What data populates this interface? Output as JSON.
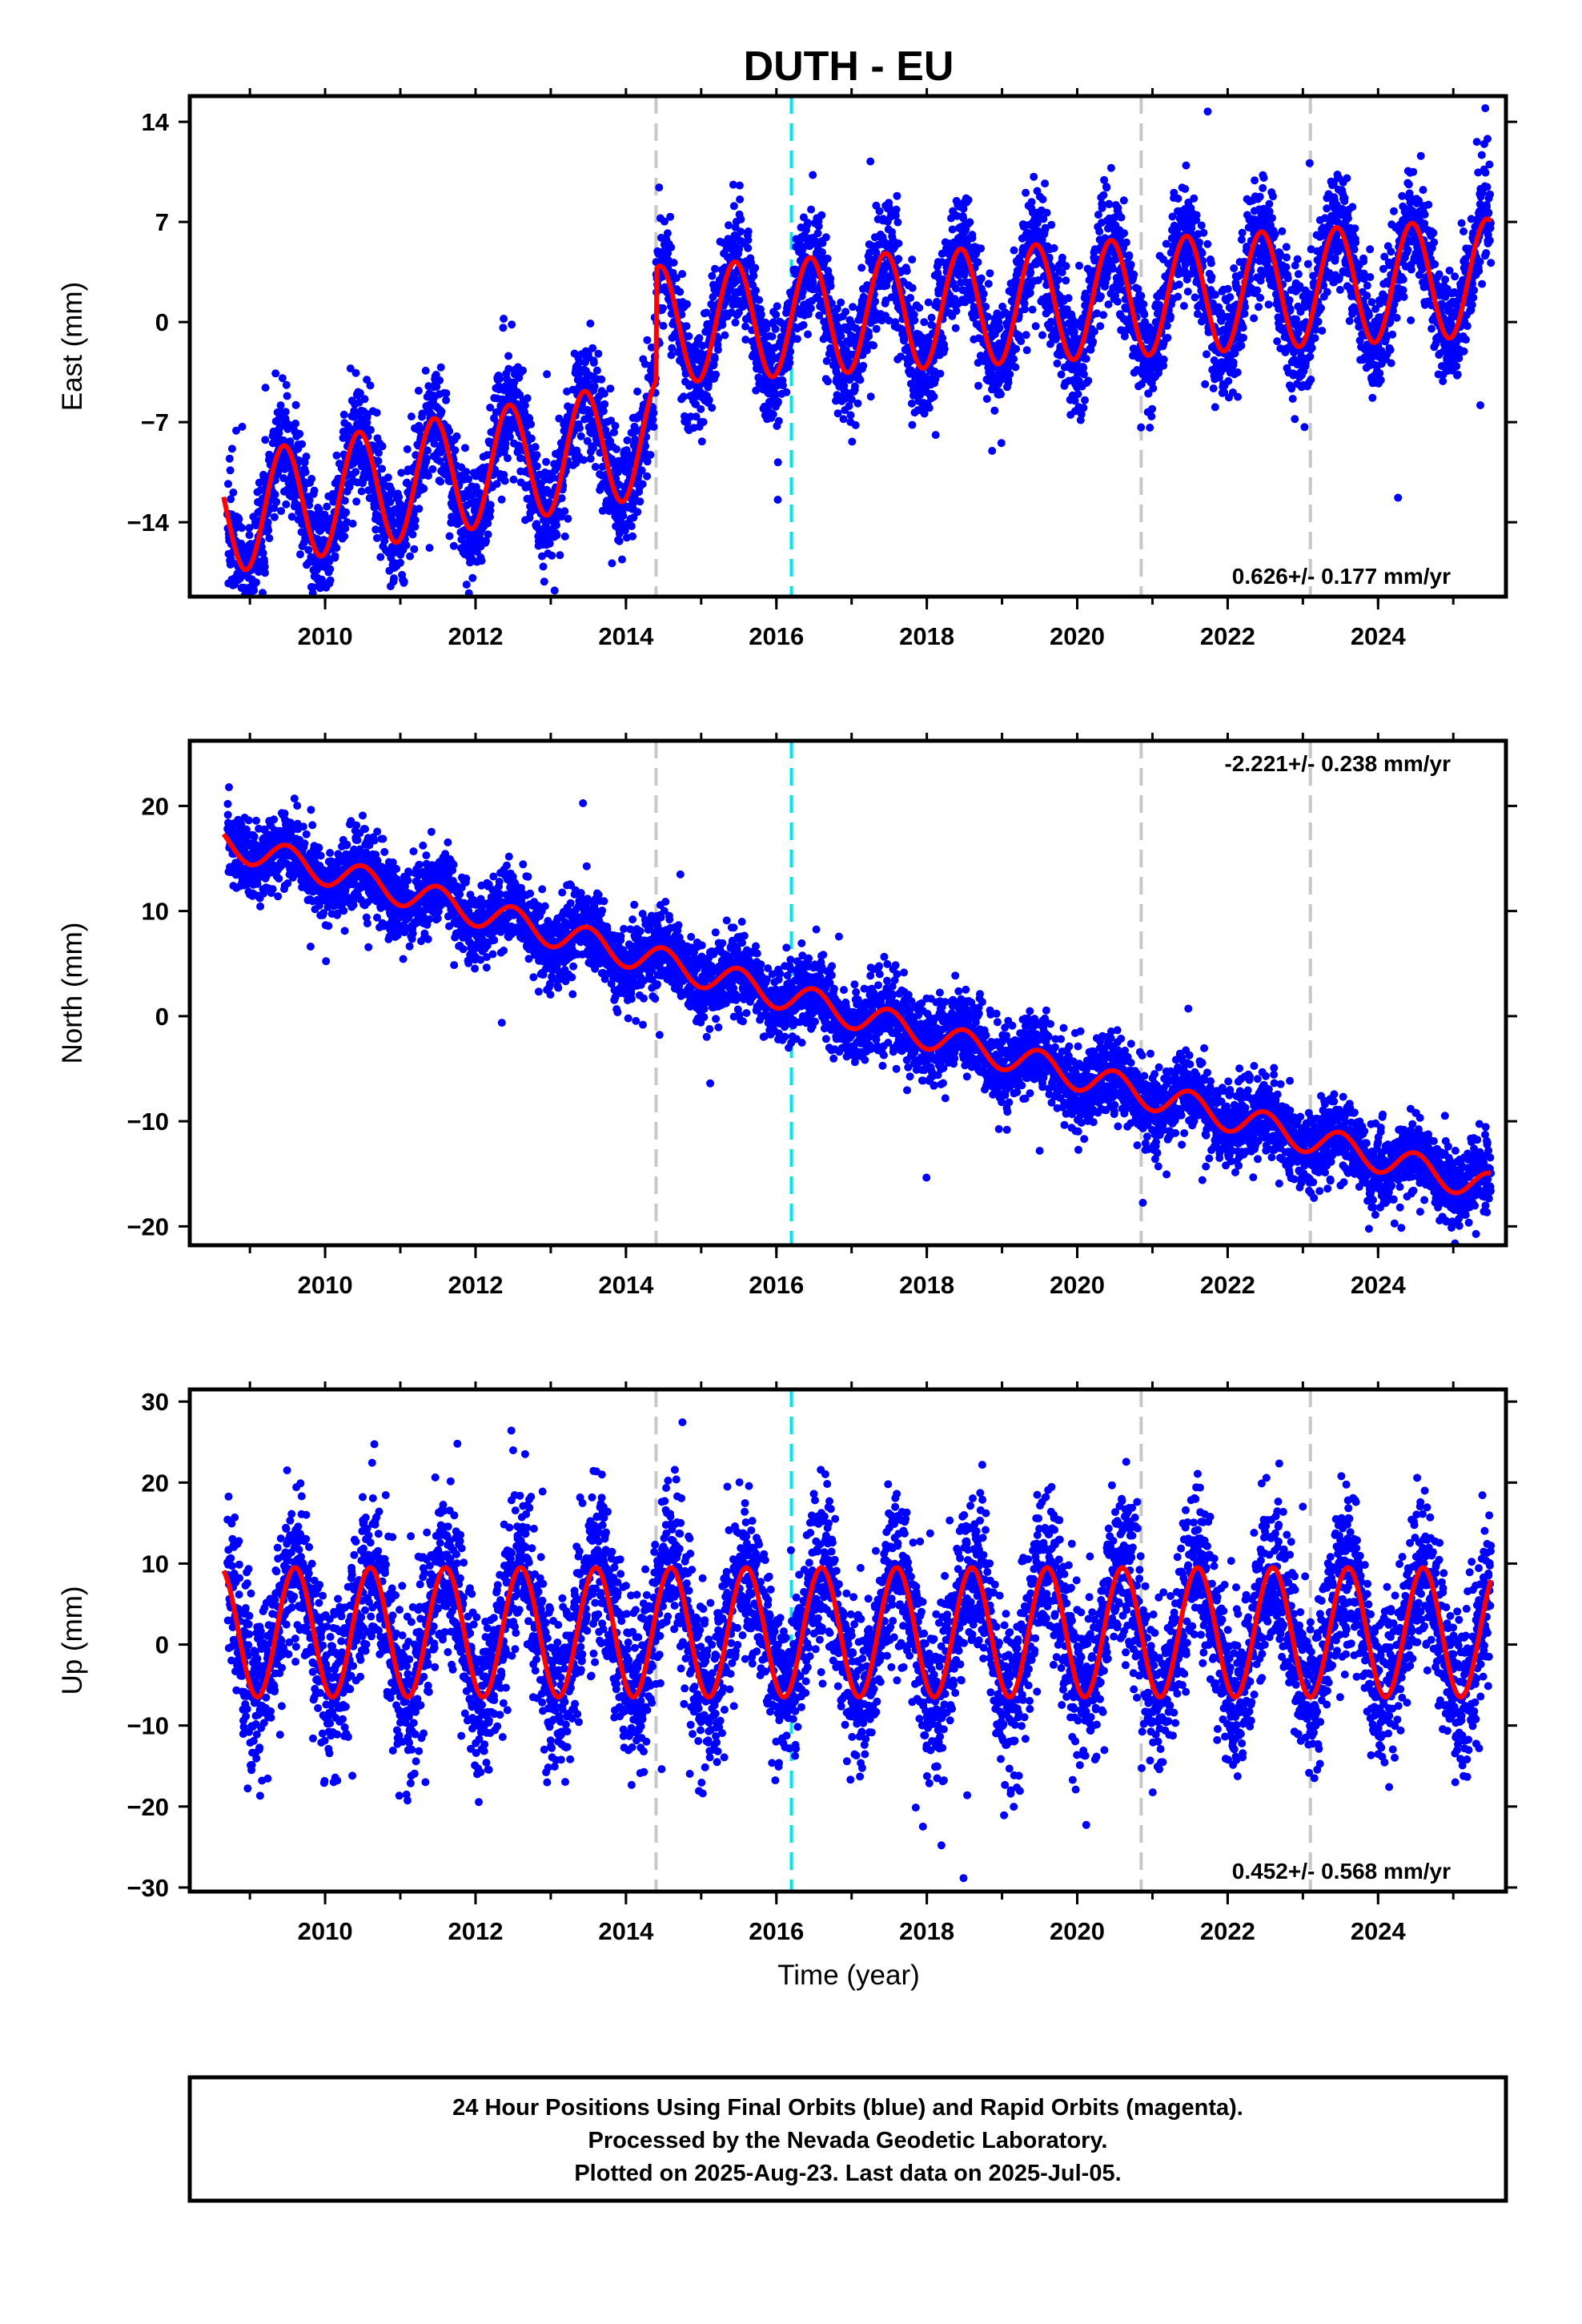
{
  "title": "DUTH - EU",
  "x_title": "Time (year)",
  "colors": {
    "points": "#0000ff",
    "fit": "#ff0000",
    "event_gray": "#c8c8c8",
    "event_cyan": "#00e5e5",
    "frame": "#000000"
  },
  "footer": {
    "line1": "24 Hour Positions Using Final Orbits (blue) and Rapid Orbits (magenta).",
    "line2": "Processed by the Nevada Geodetic Laboratory.",
    "line3": "Plotted on 2025-Aug-23. Last data on 2025-Jul-05."
  },
  "chart_data": [
    {
      "type": "scatter",
      "name": "east",
      "ylabel": "East (mm)",
      "rate_text": "0.626+/- 0.177 mm/yr",
      "rate_position": "bottom-right",
      "xlim": [
        2008.2,
        2025.7
      ],
      "ylim": [
        -19.2,
        15.8
      ],
      "yticks": [
        "14",
        "7",
        "0",
        "−7",
        "−14"
      ],
      "ytick_values": [
        14,
        7,
        0,
        -7,
        -14
      ],
      "xticks": [
        "2010",
        "2012",
        "2014",
        "2016",
        "2018",
        "2020",
        "2022",
        "2024"
      ],
      "xtick_values": [
        2010,
        2012,
        2014,
        2016,
        2018,
        2020,
        2022,
        2024
      ],
      "events_gray": [
        2014.4,
        2020.85,
        2023.1
      ],
      "events_cyan": [
        2016.2
      ],
      "fit_model": {
        "t0": 2008.65,
        "t1": 2025.5,
        "amplitude": 4.1,
        "phase_peak": 0.45,
        "segments": [
          {
            "from": 2008.65,
            "to": 2014.4,
            "offset": -13.5,
            "rate": 0.95
          },
          {
            "from": 2014.4,
            "to": 2025.5,
            "offset": -0.2,
            "rate": 0.3
          }
        ]
      },
      "scatter_noise": 2.0,
      "data_span": [
        2008.7,
        2025.5
      ]
    },
    {
      "type": "scatter",
      "name": "north",
      "ylabel": "North (mm)",
      "rate_text": "-2.221+/- 0.238 mm/yr",
      "rate_position": "top-right",
      "xlim": [
        2008.2,
        2025.7
      ],
      "ylim": [
        -21.8,
        26.2
      ],
      "yticks": [
        "20",
        "10",
        "0",
        "−10",
        "−20"
      ],
      "ytick_values": [
        20,
        10,
        0,
        -10,
        -20
      ],
      "xticks": [
        "2010",
        "2012",
        "2014",
        "2016",
        "2018",
        "2020",
        "2022",
        "2024"
      ],
      "xtick_values": [
        2010,
        2012,
        2014,
        2016,
        2018,
        2020,
        2022,
        2024
      ],
      "events_gray": [
        2014.4,
        2020.85,
        2023.1
      ],
      "events_cyan": [
        2016.2
      ],
      "fit_model": {
        "t0": 2008.65,
        "t1": 2025.5,
        "amplitude": 1.4,
        "phase_peak": 0.5,
        "segments": [
          {
            "from": 2008.65,
            "to": 2025.5,
            "offset": 16.5,
            "rate": -1.95
          }
        ]
      },
      "scatter_noise": 1.8,
      "data_span": [
        2008.7,
        2025.5
      ]
    },
    {
      "type": "scatter",
      "name": "up",
      "ylabel": "Up (mm)",
      "rate_text": "0.452+/- 0.568 mm/yr",
      "rate_position": "bottom-right",
      "xlim": [
        2008.2,
        2025.7
      ],
      "ylim": [
        -30.5,
        31.5
      ],
      "yticks": [
        "30",
        "20",
        "10",
        "0",
        "−10",
        "−20",
        "−30"
      ],
      "ytick_values": [
        30,
        20,
        10,
        0,
        -10,
        -20,
        -30
      ],
      "xticks": [
        "2010",
        "2012",
        "2014",
        "2016",
        "2018",
        "2020",
        "2022",
        "2024"
      ],
      "xtick_values": [
        2010,
        2012,
        2014,
        2016,
        2018,
        2020,
        2022,
        2024
      ],
      "events_gray": [
        2014.4,
        2020.85,
        2023.1
      ],
      "events_cyan": [
        2016.2
      ],
      "fit_model": {
        "t0": 2008.65,
        "t1": 2025.5,
        "amplitude": 8.0,
        "phase_peak": 0.6,
        "segments": [
          {
            "from": 2008.65,
            "to": 2025.5,
            "offset": 1.5,
            "rate": 0.0
          }
        ]
      },
      "scatter_noise": 5.0,
      "data_span": [
        2008.7,
        2025.5
      ]
    }
  ]
}
